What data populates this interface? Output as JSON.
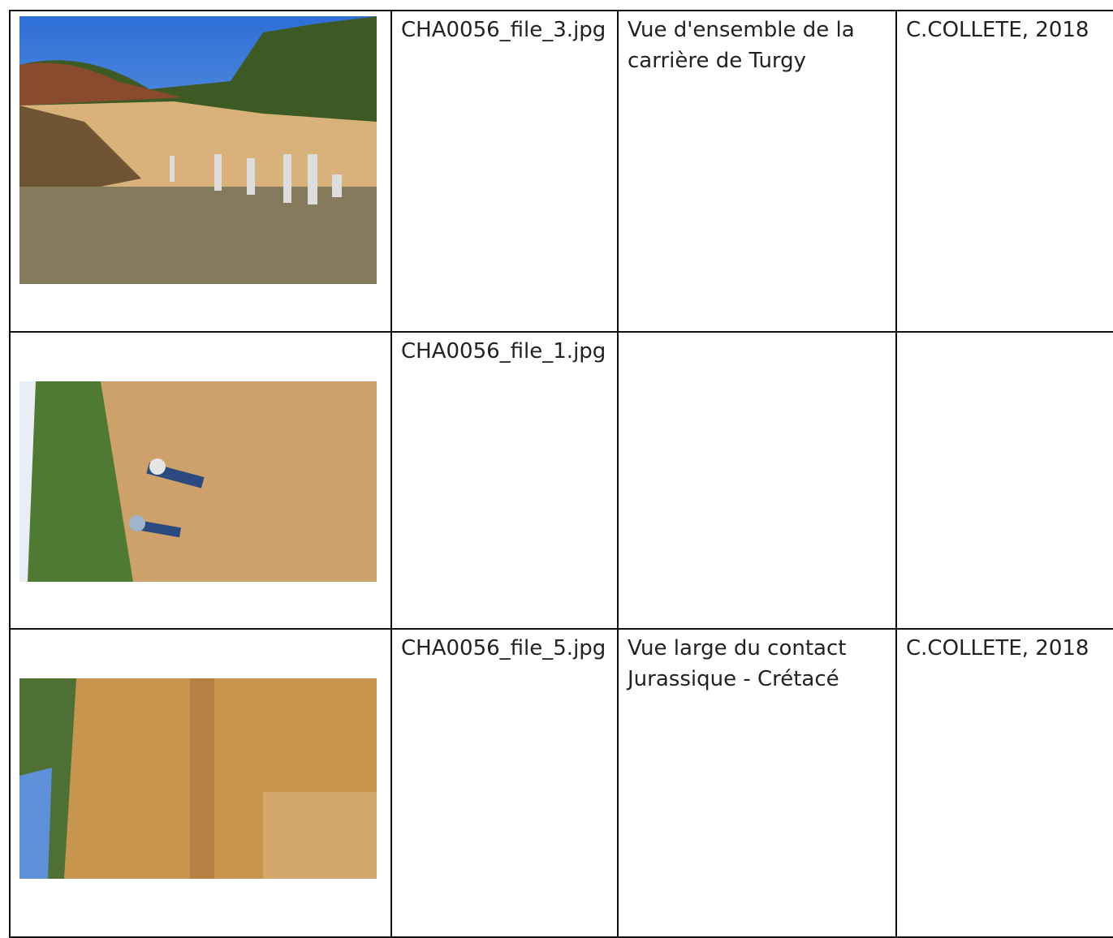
{
  "table": {
    "rows": [
      {
        "file": "CHA0056_file_3.jpg",
        "description": "Vue d'ensemble de la carrière de Turgy",
        "credit": "C.COLLETE, 2018"
      },
      {
        "file": "CHA0056_file_1.jpg"
      },
      {
        "file": "CHA0056_file_5.jpg",
        "description": "Vue large du contact Jurassique - Crétacé",
        "credit": "C.COLLETE, 2018"
      }
    ]
  }
}
